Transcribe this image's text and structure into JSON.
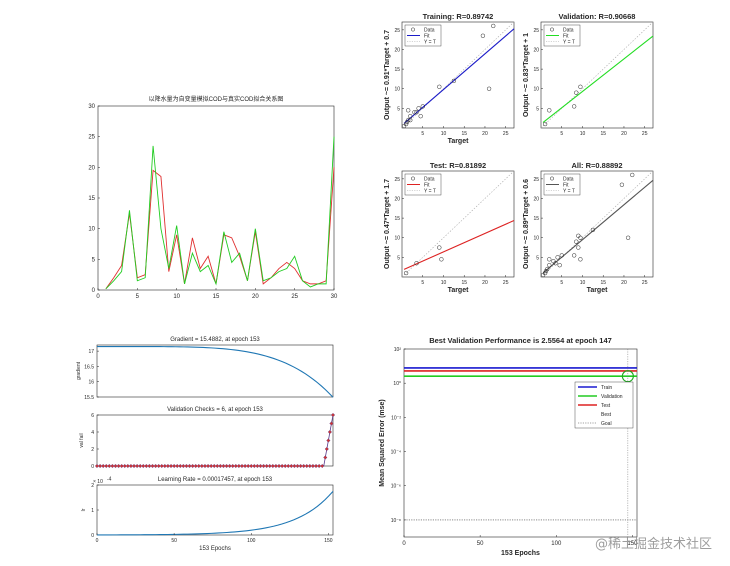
{
  "chart_data": [
    {
      "id": "cod",
      "type": "line",
      "title": "以降水量为自变量模拟COD与真实COD拟合关系图",
      "xlim": [
        0,
        30
      ],
      "ylim": [
        0,
        30
      ],
      "xticks": [
        0,
        5,
        10,
        15,
        20,
        25,
        30
      ],
      "yticks": [
        0,
        5,
        10,
        15,
        20,
        25,
        30
      ],
      "series": [
        {
          "name": "simulated",
          "color": "#e03030",
          "x": [
            1,
            2,
            3,
            4,
            5,
            6,
            7,
            8,
            9,
            10,
            11,
            12,
            13,
            14,
            15,
            16,
            17,
            18,
            19,
            20,
            21,
            22,
            23,
            24,
            25,
            26,
            27,
            28,
            29,
            30
          ],
          "values": [
            0.2,
            2,
            4,
            12.5,
            2,
            2.5,
            19.5,
            18.5,
            3,
            9,
            1,
            8.5,
            3.5,
            5.5,
            1,
            9,
            8.5,
            5.5,
            1.5,
            9.5,
            1,
            2,
            3.5,
            4.5,
            3.5,
            1.5,
            1,
            1,
            1.5,
            20
          ]
        },
        {
          "name": "real",
          "color": "#22cc22",
          "x": [
            1,
            2,
            3,
            4,
            5,
            6,
            7,
            8,
            9,
            10,
            11,
            12,
            13,
            14,
            15,
            16,
            17,
            18,
            19,
            20,
            21,
            22,
            23,
            24,
            25,
            26,
            27,
            28,
            29,
            30
          ],
          "values": [
            0.2,
            1.5,
            3,
            13,
            1.5,
            2,
            23.5,
            10,
            3.5,
            10.5,
            1,
            6,
            3,
            4,
            1,
            9.5,
            4.5,
            6,
            1.5,
            10,
            1.5,
            2,
            3,
            3.5,
            5.5,
            1.5,
            0.5,
            1,
            1,
            25
          ]
        }
      ]
    },
    {
      "id": "training",
      "type": "scatter",
      "title": "Training: R=0.89742",
      "xlabel": "Target",
      "ylabel": "Output ~= 0.91*Target + 0.7",
      "xlim": [
        0,
        27
      ],
      "ylim": [
        0,
        27
      ],
      "ticks": [
        5,
        10,
        15,
        20,
        25
      ],
      "fit": {
        "slope": 0.91,
        "intercept": 0.7,
        "color": "#1c1cc8"
      },
      "legend": [
        "Data",
        "Fit",
        "Y = T"
      ],
      "points": [
        [
          0.5,
          0.5
        ],
        [
          1,
          1
        ],
        [
          1.2,
          1.5
        ],
        [
          1.5,
          2
        ],
        [
          2,
          2
        ],
        [
          2,
          3
        ],
        [
          1.5,
          4.5
        ],
        [
          3,
          4
        ],
        [
          3.5,
          4
        ],
        [
          4,
          5
        ],
        [
          5,
          5.5
        ],
        [
          4.5,
          3
        ],
        [
          9,
          10.5
        ],
        [
          12.5,
          12
        ],
        [
          19.5,
          23.5
        ],
        [
          21,
          10
        ],
        [
          22,
          26
        ]
      ]
    },
    {
      "id": "validation",
      "type": "scatter",
      "title": "Validation: R=0.90668",
      "xlabel": "",
      "ylabel": "Output ~= 0.83*Target + 1",
      "xlim": [
        0,
        27
      ],
      "ylim": [
        0,
        27
      ],
      "ticks": [
        5,
        10,
        15,
        20,
        25
      ],
      "fit": {
        "slope": 0.83,
        "intercept": 1,
        "color": "#22dd22"
      },
      "legend": [
        "Data",
        "Fit",
        "Y = T"
      ],
      "points": [
        [
          1,
          1
        ],
        [
          2,
          4.5
        ],
        [
          8,
          5.5
        ],
        [
          8.5,
          9
        ],
        [
          9.5,
          10.5
        ]
      ]
    },
    {
      "id": "test",
      "type": "scatter",
      "title": "Test: R=0.81892",
      "xlabel": "Target",
      "ylabel": "Output ~= 0.47*Target + 1.7",
      "xlim": [
        0,
        27
      ],
      "ylim": [
        0,
        27
      ],
      "ticks": [
        5,
        10,
        15,
        20,
        25
      ],
      "fit": {
        "slope": 0.47,
        "intercept": 1.7,
        "color": "#dd2222"
      },
      "legend": [
        "Data",
        "Fit",
        "Y = T"
      ],
      "points": [
        [
          1,
          1
        ],
        [
          3.5,
          3.5
        ],
        [
          9,
          7.5
        ],
        [
          9.5,
          4.5
        ]
      ]
    },
    {
      "id": "all",
      "type": "scatter",
      "title": "All: R=0.88892",
      "xlabel": "Target",
      "ylabel": "Output ~= 0.89*Target + 0.6",
      "xlim": [
        0,
        27
      ],
      "ylim": [
        0,
        27
      ],
      "ticks": [
        5,
        10,
        15,
        20,
        25
      ],
      "fit": {
        "slope": 0.89,
        "intercept": 0.6,
        "color": "#555555"
      },
      "legend": [
        "Data",
        "Fit",
        "Y = T"
      ],
      "points": [
        [
          0.5,
          0.5
        ],
        [
          1,
          1
        ],
        [
          1.2,
          1.5
        ],
        [
          1.5,
          2
        ],
        [
          2,
          3
        ],
        [
          2,
          4.5
        ],
        [
          3,
          4
        ],
        [
          3.5,
          3.5
        ],
        [
          4,
          5
        ],
        [
          4.5,
          3
        ],
        [
          5,
          5.5
        ],
        [
          8,
          5.5
        ],
        [
          8.5,
          9
        ],
        [
          9,
          10.5
        ],
        [
          9.5,
          10
        ],
        [
          9.5,
          4.5
        ],
        [
          9,
          7.5
        ],
        [
          12.5,
          12
        ],
        [
          19.5,
          23.5
        ],
        [
          21,
          10
        ],
        [
          22,
          26
        ]
      ]
    },
    {
      "id": "gradient",
      "type": "line",
      "title": "Gradient = 15.4882, at epoch 153",
      "ylabel": "gradient",
      "xlim": [
        0,
        153
      ],
      "ylim": [
        15.5,
        17.2
      ],
      "yticks": [
        15.5,
        16,
        16.5,
        17
      ],
      "start": 17.15,
      "end": 15.49,
      "color": "#1f77b4"
    },
    {
      "id": "valfail",
      "type": "scatter",
      "title": "Validation Checks = 6, at epoch 153",
      "ylabel": "val fail",
      "xlim": [
        0,
        153
      ],
      "ylim": [
        0,
        6
      ],
      "yticks": [
        0,
        2,
        4,
        6
      ],
      "checks_start_epoch": 147,
      "max_checks": 6,
      "color": "#5b3c8c",
      "marker_fill": "#cc3333"
    },
    {
      "id": "lr",
      "type": "line",
      "title": "Learning Rate = 0.00017457, at epoch 153",
      "ylabel": "lr",
      "xlim": [
        0,
        153
      ],
      "ylim": [
        0,
        0.0002
      ],
      "yticks": [
        "0",
        "1",
        "2"
      ],
      "exponent_label": "× 10",
      "exponent_power": "-4",
      "end_value": 0.00017457,
      "xticks": [
        0,
        50,
        100,
        150
      ],
      "xlabel": "153 Epochs",
      "color": "#1f77b4"
    },
    {
      "id": "perf",
      "type": "line",
      "title": "Best Validation Performance is 2.5564 at epoch 147",
      "xlabel": "153 Epochs",
      "ylabel": "Mean Squared Error  (mse)",
      "xlim": [
        0,
        153
      ],
      "xticks": [
        0,
        50,
        100,
        150
      ],
      "ylog_min": -9,
      "ylog_max": 2,
      "yticks": [
        "10²",
        "10⁰",
        "10⁻²",
        "10⁻⁴",
        "10⁻⁶",
        "10⁻⁸"
      ],
      "ytick_exps": [
        2,
        0,
        -2,
        -4,
        -6,
        -8
      ],
      "series": [
        {
          "name": "Train",
          "value": 7.8,
          "color": "#1a1ad0"
        },
        {
          "name": "Validation",
          "value": 2.5564,
          "color": "#22cc22"
        },
        {
          "name": "Test",
          "value": 5.2,
          "color": "#dd2222"
        }
      ],
      "best_epoch": 147,
      "best_value": 2.5564,
      "goal": 1e-08,
      "legend": [
        "Train",
        "Validation",
        "Test",
        "Best",
        "Goal"
      ]
    }
  ],
  "watermark": "@稀土掘金技术社区"
}
